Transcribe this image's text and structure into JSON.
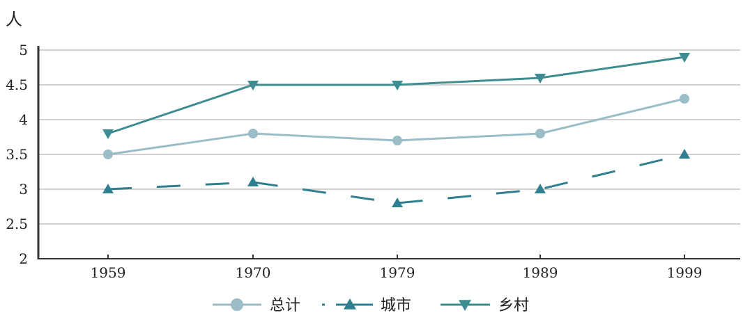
{
  "chart_data": {
    "type": "line",
    "title": "",
    "xlabel": "",
    "ylabel": "人",
    "ylim": [
      2,
      5
    ],
    "yticks": [
      "2",
      "2.5",
      "3",
      "3.5",
      "4",
      "4.5",
      "5"
    ],
    "yticks_values": [
      2,
      2.5,
      3,
      3.5,
      4,
      4.5,
      5
    ],
    "categories": [
      "1959",
      "1970",
      "1979",
      "1989",
      "1999"
    ],
    "grid": true,
    "legend_position": "bottom",
    "series": [
      {
        "name": "总计",
        "values": [
          3.5,
          3.8,
          3.7,
          3.8,
          4.3
        ],
        "color": "#9bbdc7",
        "marker": "circle",
        "line_style": "solid"
      },
      {
        "name": "城市",
        "values": [
          3.0,
          3.1,
          2.8,
          3.0,
          3.5
        ],
        "color": "#2e7f8f",
        "marker": "triangle-up",
        "line_style": "dashed"
      },
      {
        "name": "乡村",
        "values": [
          3.8,
          4.5,
          4.5,
          4.6,
          4.9
        ],
        "color": "#3d8c91",
        "marker": "triangle-down",
        "line_style": "solid"
      }
    ]
  }
}
